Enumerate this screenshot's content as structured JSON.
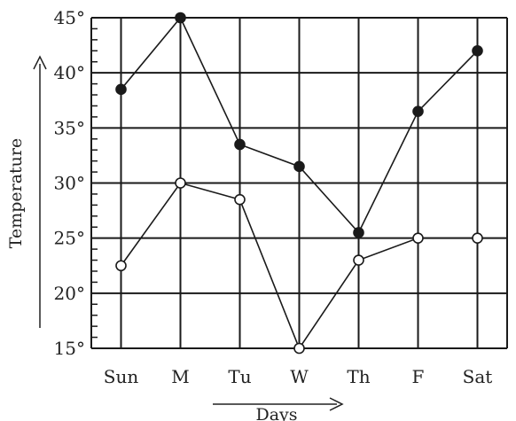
{
  "chart_data": {
    "type": "line",
    "xlabel": "Days",
    "ylabel": "Temperature",
    "categories": [
      "Sun",
      "M",
      "Tu",
      "W",
      "Th",
      "F",
      "Sat"
    ],
    "y_tick_labels": [
      "15°",
      "20°",
      "25°",
      "30°",
      "35°",
      "40°",
      "45°"
    ],
    "ylim": [
      15,
      45
    ],
    "grid": true,
    "series": [
      {
        "marker": "filled-circle",
        "color": "#1a1a1a",
        "values": [
          38.5,
          45,
          33.5,
          31.5,
          25.5,
          36.5,
          42
        ]
      },
      {
        "marker": "open-circle",
        "color": "#1a1a1a",
        "values": [
          22.5,
          30,
          28.5,
          15,
          23,
          25,
          25
        ]
      }
    ]
  }
}
